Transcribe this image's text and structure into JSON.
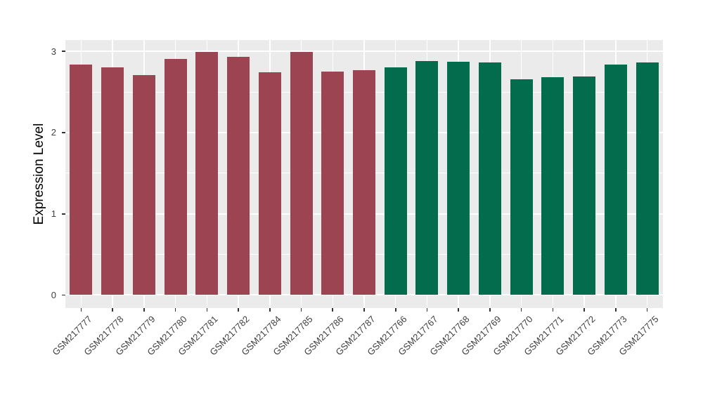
{
  "chart_data": {
    "type": "bar",
    "title": "",
    "xlabel": "",
    "ylabel": "Expression Level",
    "ylim": [
      -0.16,
      3.14
    ],
    "yticks_major": [
      0,
      1,
      2,
      3
    ],
    "yticks_minor": [
      0.5,
      1.5,
      2.5
    ],
    "grid": "white major+minor horizontal lines, white major vertical lines at category centers, on gray panel",
    "legend_position": "none",
    "categories": [
      "GSM217777",
      "GSM217778",
      "GSM217779",
      "GSM217780",
      "GSM217781",
      "GSM217782",
      "GSM217784",
      "GSM217785",
      "GSM217786",
      "GSM217787",
      "GSM217766",
      "GSM217767",
      "GSM217768",
      "GSM217769",
      "GSM217770",
      "GSM217771",
      "GSM217772",
      "GSM217773",
      "GSM217775"
    ],
    "values": [
      2.84,
      2.8,
      2.71,
      2.91,
      2.99,
      2.93,
      2.74,
      2.99,
      2.75,
      2.77,
      2.8,
      2.88,
      2.87,
      2.86,
      2.66,
      2.68,
      2.69,
      2.84,
      2.86
    ],
    "bar_colors": [
      "#9C4452",
      "#9C4452",
      "#9C4452",
      "#9C4452",
      "#9C4452",
      "#9C4452",
      "#9C4452",
      "#9C4452",
      "#9C4452",
      "#9C4452",
      "#026C4C",
      "#026C4C",
      "#026C4C",
      "#026C4C",
      "#026C4C",
      "#026C4C",
      "#026C4C",
      "#026C4C",
      "#026C4C"
    ]
  },
  "style": {
    "page_bg": "#FFFFFF",
    "panel_bg": "#EBEBEB",
    "grid_color": "#FFFFFF",
    "bar_color_group1": "#9C4452",
    "bar_color_group2": "#026C4C",
    "tick_mark_color": "#333333",
    "axis_text_color": "#404040",
    "axis_title_color": "#000000"
  }
}
